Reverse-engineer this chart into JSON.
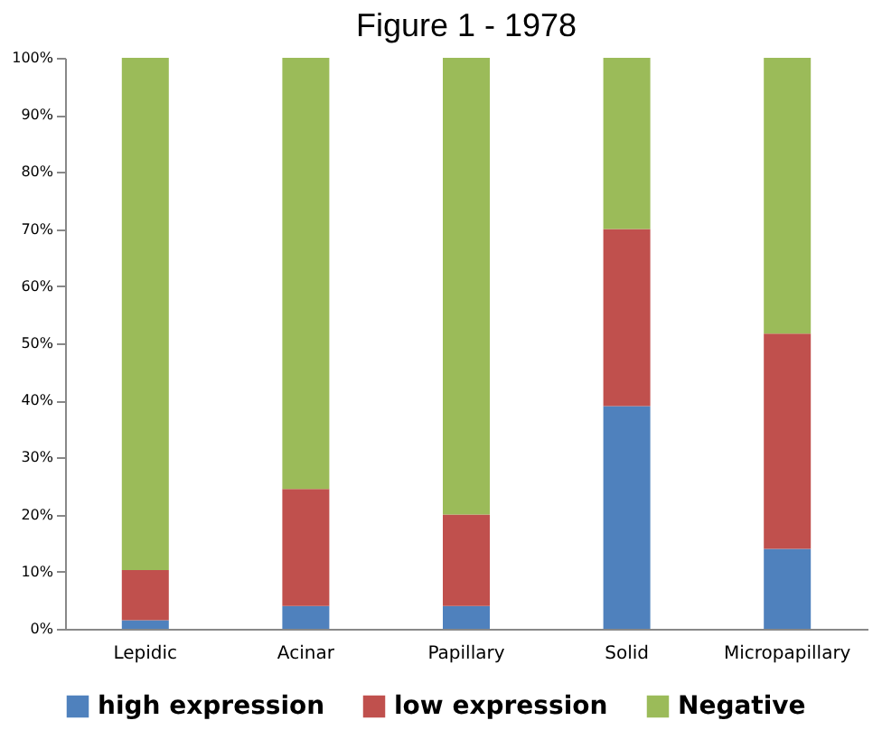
{
  "chart_data": {
    "type": "bar",
    "title": "Figure 1 - 1978",
    "stacked": true,
    "legend": "bottom",
    "grid": false,
    "categories": [
      "Lepidic",
      "Acinar",
      "Papillary",
      "Solid",
      "Micropapillary"
    ],
    "series": [
      {
        "name": "high expression",
        "color": "#4f81bd",
        "values": [
          1.5,
          4,
          4,
          39,
          14
        ]
      },
      {
        "name": "low expression",
        "color": "#c0504d",
        "values": [
          8.8,
          20.5,
          16,
          31,
          37.7
        ]
      },
      {
        "name": "Negative",
        "color": "#9bbb59",
        "values": [
          89.7,
          75.5,
          80,
          30,
          48.3
        ]
      }
    ],
    "ylim": [
      0,
      100
    ],
    "yticks": [
      {
        "value": 0,
        "label": "0%"
      },
      {
        "value": 10,
        "label": "10%"
      },
      {
        "value": 20,
        "label": "20%"
      },
      {
        "value": 30,
        "label": "30%"
      },
      {
        "value": 40,
        "label": "40%"
      },
      {
        "value": 50,
        "label": "50%"
      },
      {
        "value": 60,
        "label": "60%"
      },
      {
        "value": 70,
        "label": "70%"
      },
      {
        "value": 80,
        "label": "80%"
      },
      {
        "value": 90,
        "label": "90%"
      },
      {
        "value": 100,
        "label": "100%"
      }
    ]
  }
}
